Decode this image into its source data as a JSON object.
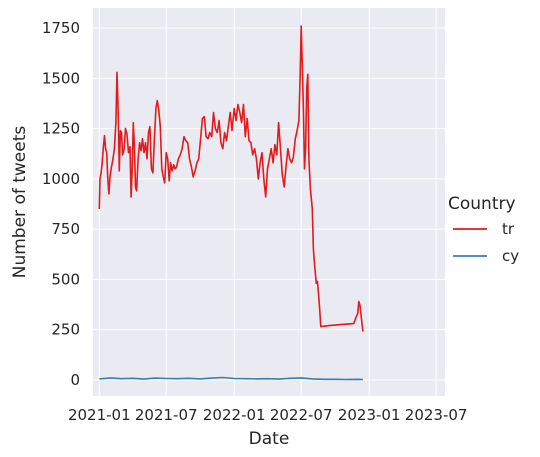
{
  "chart_data": {
    "type": "line",
    "title": "",
    "xlabel": "Date",
    "ylabel": "Number of tweets",
    "xlim": [
      "2020-12-15",
      "2023-07-25"
    ],
    "ylim": [
      -80,
      1850
    ],
    "grid": true,
    "background": "#eaeaf2",
    "x_ticks": [
      "2021-01",
      "2021-07",
      "2022-01",
      "2022-07",
      "2023-01",
      "2023-07"
    ],
    "x_tick_labels": [
      "2021-01",
      "2021-07",
      "2022-01",
      "2022-07",
      "2023-01",
      "2023-07"
    ],
    "y_ticks": [
      0,
      250,
      500,
      750,
      1000,
      1250,
      1500,
      1750
    ],
    "y_tick_labels": [
      "0",
      "250",
      "500",
      "750",
      "1000",
      "1250",
      "1500",
      "1750"
    ],
    "legend": {
      "title": "Country",
      "placement": "right",
      "entries": [
        "tr",
        "cy"
      ]
    },
    "series": [
      {
        "name": "tr",
        "color": "#e41a1c",
        "points": [
          [
            "2021-01-01",
            850
          ],
          [
            "2021-01-03",
            1000
          ],
          [
            "2021-01-06",
            1030
          ],
          [
            "2021-01-09",
            1080
          ],
          [
            "2021-01-12",
            1160
          ],
          [
            "2021-01-15",
            1215
          ],
          [
            "2021-01-18",
            1150
          ],
          [
            "2021-01-21",
            1130
          ],
          [
            "2021-01-24",
            1000
          ],
          [
            "2021-01-27",
            925
          ],
          [
            "2021-01-30",
            1010
          ],
          [
            "2021-02-03",
            1060
          ],
          [
            "2021-02-07",
            1100
          ],
          [
            "2021-02-11",
            1150
          ],
          [
            "2021-02-15",
            1280
          ],
          [
            "2021-02-18",
            1530
          ],
          [
            "2021-02-21",
            1350
          ],
          [
            "2021-02-24",
            1040
          ],
          [
            "2021-02-27",
            1240
          ],
          [
            "2021-03-02",
            1230
          ],
          [
            "2021-03-05",
            1120
          ],
          [
            "2021-03-09",
            1150
          ],
          [
            "2021-03-13",
            1250
          ],
          [
            "2021-03-17",
            1220
          ],
          [
            "2021-03-21",
            1130
          ],
          [
            "2021-03-25",
            1160
          ],
          [
            "2021-03-28",
            910
          ],
          [
            "2021-03-31",
            1050
          ],
          [
            "2021-04-03",
            1280
          ],
          [
            "2021-04-06",
            1160
          ],
          [
            "2021-04-09",
            960
          ],
          [
            "2021-04-12",
            940
          ],
          [
            "2021-04-16",
            1100
          ],
          [
            "2021-04-20",
            1180
          ],
          [
            "2021-04-24",
            1140
          ],
          [
            "2021-04-28",
            1200
          ],
          [
            "2021-05-02",
            1130
          ],
          [
            "2021-05-06",
            1180
          ],
          [
            "2021-05-10",
            1100
          ],
          [
            "2021-05-14",
            1230
          ],
          [
            "2021-05-18",
            1260
          ],
          [
            "2021-05-22",
            1050
          ],
          [
            "2021-05-26",
            1030
          ],
          [
            "2021-05-30",
            1200
          ],
          [
            "2021-06-03",
            1350
          ],
          [
            "2021-06-07",
            1390
          ],
          [
            "2021-06-11",
            1340
          ],
          [
            "2021-06-15",
            1260
          ],
          [
            "2021-06-19",
            1050
          ],
          [
            "2021-06-23",
            1010
          ],
          [
            "2021-06-27",
            980
          ],
          [
            "2021-07-01",
            1130
          ],
          [
            "2021-07-05",
            1100
          ],
          [
            "2021-07-09",
            990
          ],
          [
            "2021-07-13",
            1080
          ],
          [
            "2021-07-17",
            1040
          ],
          [
            "2021-07-21",
            1070
          ],
          [
            "2021-07-25",
            1050
          ],
          [
            "2021-07-29",
            1060
          ],
          [
            "2021-08-03",
            1100
          ],
          [
            "2021-08-08",
            1120
          ],
          [
            "2021-08-13",
            1150
          ],
          [
            "2021-08-18",
            1210
          ],
          [
            "2021-08-23",
            1190
          ],
          [
            "2021-08-28",
            1180
          ],
          [
            "2021-09-02",
            1100
          ],
          [
            "2021-09-07",
            1060
          ],
          [
            "2021-09-12",
            1010
          ],
          [
            "2021-09-17",
            1040
          ],
          [
            "2021-09-22",
            1080
          ],
          [
            "2021-09-27",
            1100
          ],
          [
            "2021-10-02",
            1200
          ],
          [
            "2021-10-07",
            1300
          ],
          [
            "2021-10-12",
            1310
          ],
          [
            "2021-10-17",
            1210
          ],
          [
            "2021-10-22",
            1200
          ],
          [
            "2021-10-27",
            1230
          ],
          [
            "2021-11-01",
            1210
          ],
          [
            "2021-11-06",
            1330
          ],
          [
            "2021-11-11",
            1250
          ],
          [
            "2021-11-16",
            1230
          ],
          [
            "2021-11-21",
            1290
          ],
          [
            "2021-11-26",
            1180
          ],
          [
            "2021-12-01",
            1150
          ],
          [
            "2021-12-06",
            1230
          ],
          [
            "2021-12-11",
            1190
          ],
          [
            "2021-12-16",
            1260
          ],
          [
            "2021-12-21",
            1330
          ],
          [
            "2021-12-26",
            1240
          ],
          [
            "2022-01-01",
            1350
          ],
          [
            "2022-01-06",
            1290
          ],
          [
            "2022-01-11",
            1370
          ],
          [
            "2022-01-16",
            1330
          ],
          [
            "2022-01-21",
            1280
          ],
          [
            "2022-01-26",
            1370
          ],
          [
            "2022-01-31",
            1210
          ],
          [
            "2022-02-05",
            1300
          ],
          [
            "2022-02-10",
            1190
          ],
          [
            "2022-02-15",
            1180
          ],
          [
            "2022-02-20",
            1120
          ],
          [
            "2022-02-25",
            1150
          ],
          [
            "2022-03-02",
            1100
          ],
          [
            "2022-03-07",
            1000
          ],
          [
            "2022-03-12",
            1080
          ],
          [
            "2022-03-17",
            1130
          ],
          [
            "2022-03-22",
            1000
          ],
          [
            "2022-03-27",
            910
          ],
          [
            "2022-04-01",
            1050
          ],
          [
            "2022-04-06",
            1100
          ],
          [
            "2022-04-11",
            1150
          ],
          [
            "2022-04-16",
            1080
          ],
          [
            "2022-04-21",
            1170
          ],
          [
            "2022-04-26",
            1120
          ],
          [
            "2022-05-01",
            1280
          ],
          [
            "2022-05-06",
            1150
          ],
          [
            "2022-05-11",
            1020
          ],
          [
            "2022-05-16",
            960
          ],
          [
            "2022-05-21",
            1060
          ],
          [
            "2022-05-26",
            1150
          ],
          [
            "2022-05-31",
            1100
          ],
          [
            "2022-06-05",
            1080
          ],
          [
            "2022-06-10",
            1110
          ],
          [
            "2022-06-15",
            1200
          ],
          [
            "2022-06-20",
            1240
          ],
          [
            "2022-06-25",
            1290
          ],
          [
            "2022-06-28",
            1500
          ],
          [
            "2022-07-01",
            1760
          ],
          [
            "2022-07-04",
            1560
          ],
          [
            "2022-07-07",
            1350
          ],
          [
            "2022-07-10",
            1050
          ],
          [
            "2022-07-13",
            1150
          ],
          [
            "2022-07-16",
            1450
          ],
          [
            "2022-07-19",
            1520
          ],
          [
            "2022-07-22",
            1100
          ],
          [
            "2022-07-26",
            950
          ],
          [
            "2022-07-31",
            850
          ],
          [
            "2022-08-03",
            650
          ],
          [
            "2022-08-07",
            560
          ],
          [
            "2022-08-11",
            480
          ],
          [
            "2022-08-14",
            490
          ],
          [
            "2022-08-17",
            430
          ],
          [
            "2022-08-20",
            350
          ],
          [
            "2022-08-23",
            265
          ],
          [
            "2022-09-15",
            270
          ],
          [
            "2022-10-15",
            275
          ],
          [
            "2022-11-20",
            280
          ],
          [
            "2022-11-26",
            310
          ],
          [
            "2022-12-01",
            330
          ],
          [
            "2022-12-04",
            390
          ],
          [
            "2022-12-07",
            370
          ],
          [
            "2022-12-10",
            320
          ],
          [
            "2022-12-15",
            240
          ]
        ]
      },
      {
        "name": "cy",
        "color": "#377eb8",
        "points": [
          [
            "2021-01-01",
            5
          ],
          [
            "2021-02-01",
            10
          ],
          [
            "2021-03-01",
            6
          ],
          [
            "2021-04-01",
            8
          ],
          [
            "2021-05-01",
            4
          ],
          [
            "2021-06-01",
            9
          ],
          [
            "2021-07-01",
            7
          ],
          [
            "2021-08-01",
            6
          ],
          [
            "2021-09-01",
            8
          ],
          [
            "2021-10-01",
            5
          ],
          [
            "2021-11-01",
            9
          ],
          [
            "2021-12-01",
            12
          ],
          [
            "2022-01-01",
            7
          ],
          [
            "2022-02-01",
            6
          ],
          [
            "2022-03-01",
            5
          ],
          [
            "2022-04-01",
            6
          ],
          [
            "2022-05-01",
            4
          ],
          [
            "2022-06-01",
            8
          ],
          [
            "2022-07-01",
            10
          ],
          [
            "2022-08-01",
            5
          ],
          [
            "2022-09-01",
            3
          ],
          [
            "2022-10-01",
            3
          ],
          [
            "2022-11-01",
            2
          ],
          [
            "2022-12-01",
            3
          ],
          [
            "2022-12-15",
            2
          ]
        ]
      }
    ]
  }
}
